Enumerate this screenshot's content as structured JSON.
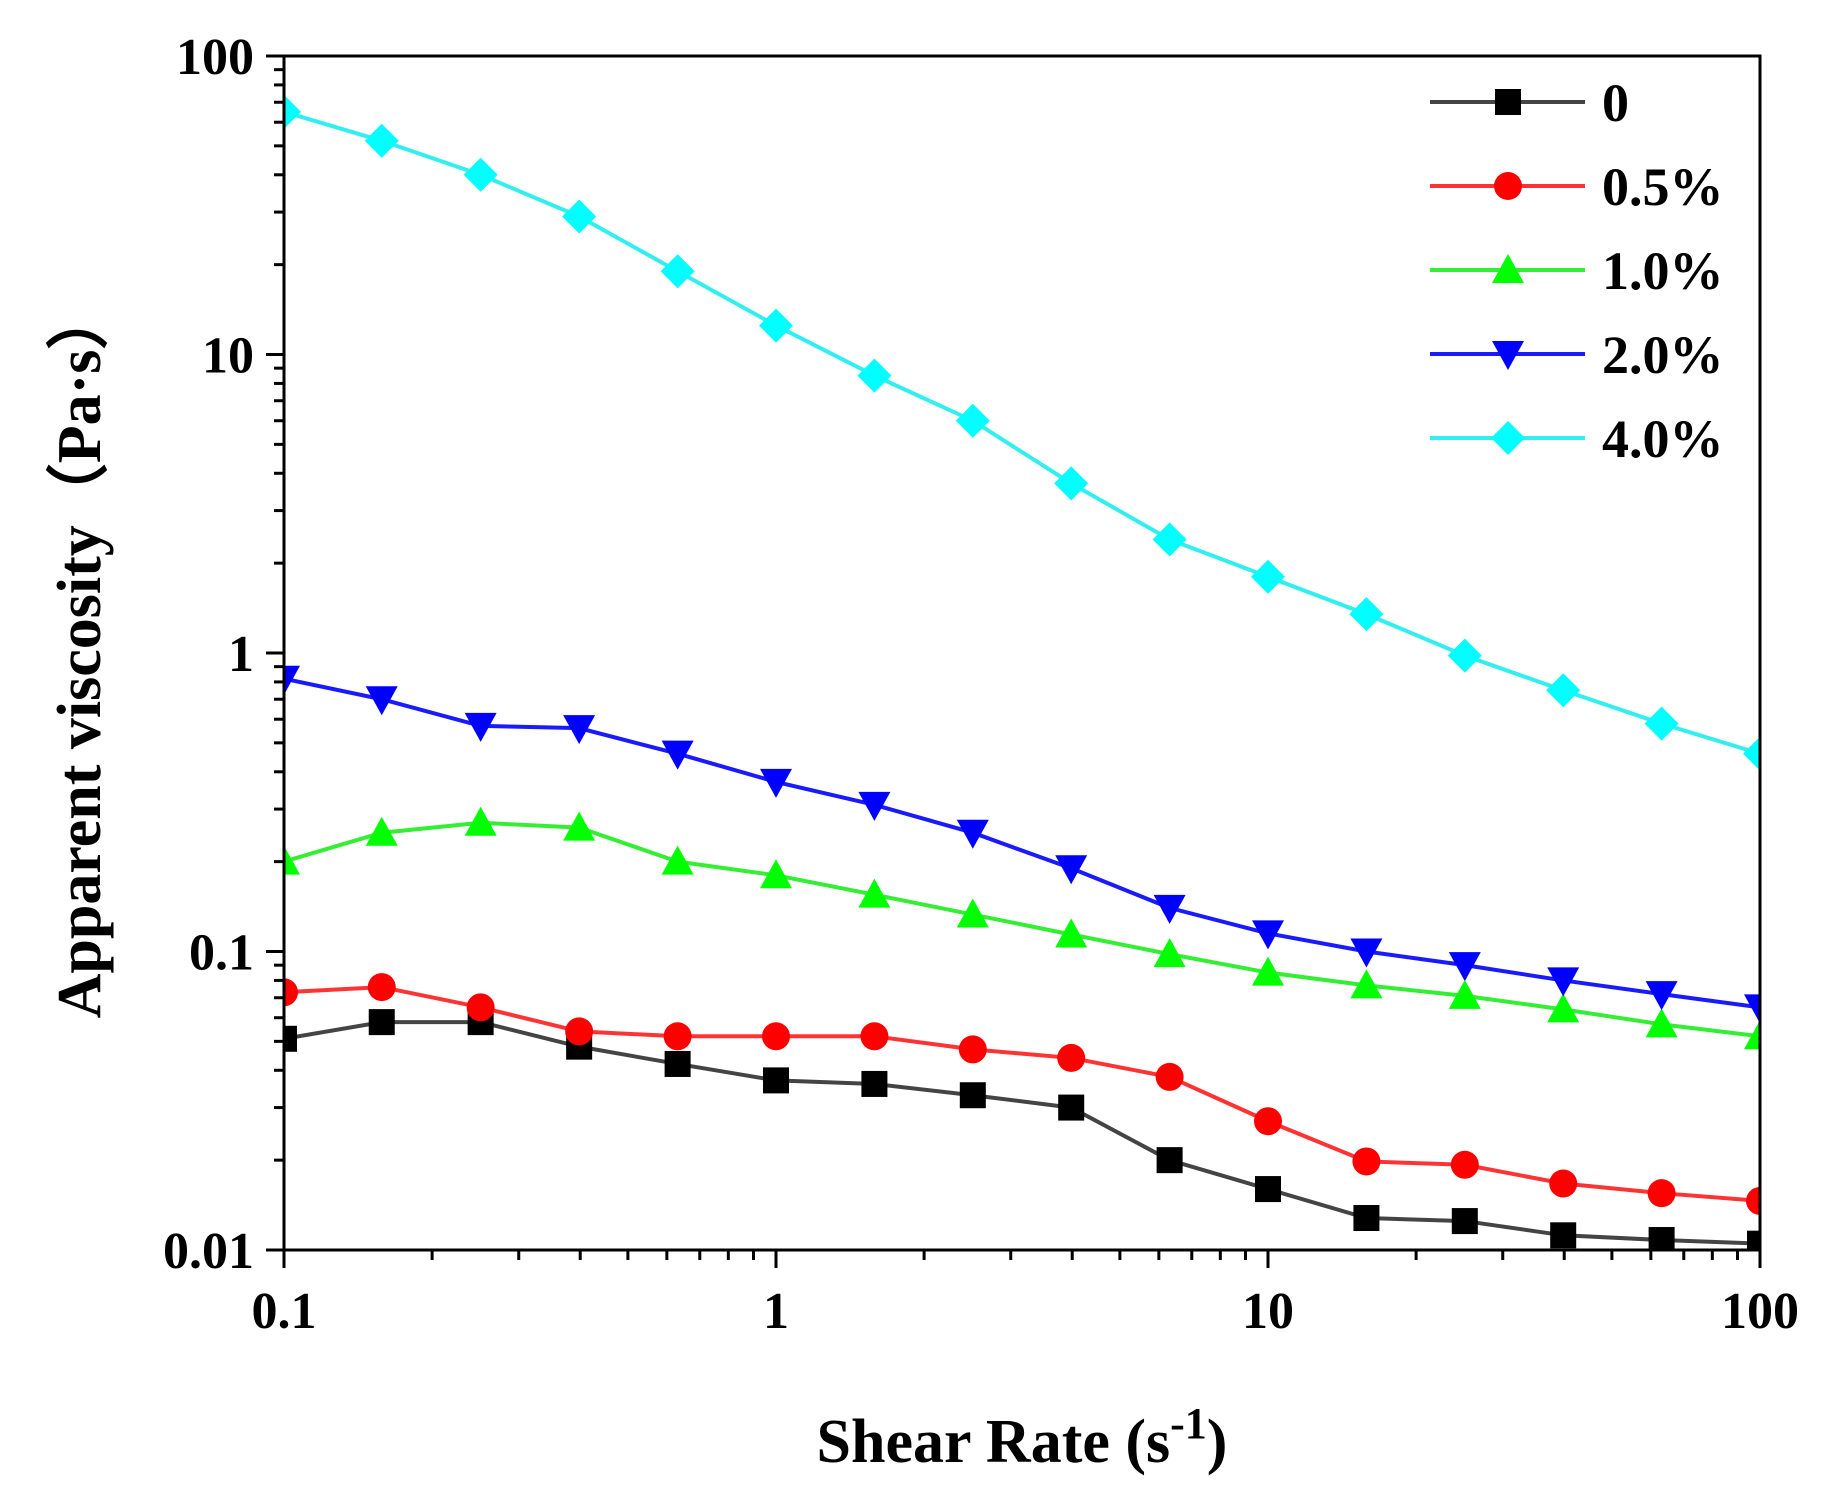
{
  "chart_data": {
    "type": "line",
    "title": "",
    "xlabel": "Shear Rate (s",
    "xlabel_sup": "-1",
    "xlabel_close": ")",
    "ylabel": "Apparent viscosity（Pa·s）",
    "xscale": "log",
    "yscale": "log",
    "xlim": [
      0.1,
      100
    ],
    "ylim": [
      0.01,
      100
    ],
    "x_ticks": [
      0.1,
      1,
      10,
      100
    ],
    "x_tick_labels": [
      "0.1",
      "1",
      "10",
      "100"
    ],
    "y_ticks": [
      0.01,
      0.1,
      1,
      10,
      100
    ],
    "y_tick_labels": [
      "0.01",
      "0.1",
      "1",
      "10",
      "100"
    ],
    "legend_position": "top-right",
    "x": [
      0.1,
      0.158,
      0.251,
      0.398,
      0.631,
      1.0,
      1.585,
      2.512,
      3.981,
      6.31,
      10.0,
      15.85,
      25.12,
      39.81,
      63.1,
      100.0
    ],
    "series": [
      {
        "name": "0",
        "color": "#000000",
        "line_color": "#444444",
        "marker": "square",
        "values": [
          0.051,
          0.058,
          0.058,
          0.048,
          0.042,
          0.037,
          0.036,
          0.033,
          0.03,
          0.02,
          0.016,
          0.0128,
          0.0125,
          0.0112,
          0.0108,
          0.0105
        ]
      },
      {
        "name": "0.5%",
        "color": "#ff0000",
        "line_color": "#ff3333",
        "marker": "circle",
        "values": [
          0.073,
          0.076,
          0.065,
          0.054,
          0.052,
          0.052,
          0.052,
          0.047,
          0.044,
          0.038,
          0.027,
          0.0198,
          0.0193,
          0.0167,
          0.0155,
          0.0146
        ]
      },
      {
        "name": "1.0%",
        "color": "#00ff00",
        "line_color": "#33ee33",
        "marker": "triangle-up",
        "values": [
          0.2,
          0.25,
          0.27,
          0.26,
          0.2,
          0.18,
          0.155,
          0.133,
          0.114,
          0.098,
          0.085,
          0.077,
          0.071,
          0.064,
          0.057,
          0.052
        ]
      },
      {
        "name": "2.0%",
        "color": "#0000ff",
        "line_color": "#1a1aff",
        "marker": "triangle-down",
        "values": [
          0.82,
          0.7,
          0.57,
          0.56,
          0.46,
          0.37,
          0.31,
          0.25,
          0.19,
          0.14,
          0.115,
          0.1,
          0.09,
          0.08,
          0.072,
          0.065
        ]
      },
      {
        "name": "4.0%",
        "color": "#00ffff",
        "line_color": "#33eeee",
        "marker": "diamond",
        "values": [
          65,
          52,
          40,
          29,
          19,
          12.5,
          8.5,
          6.0,
          3.7,
          2.4,
          1.8,
          1.35,
          0.98,
          0.75,
          0.58,
          0.46
        ]
      }
    ]
  }
}
